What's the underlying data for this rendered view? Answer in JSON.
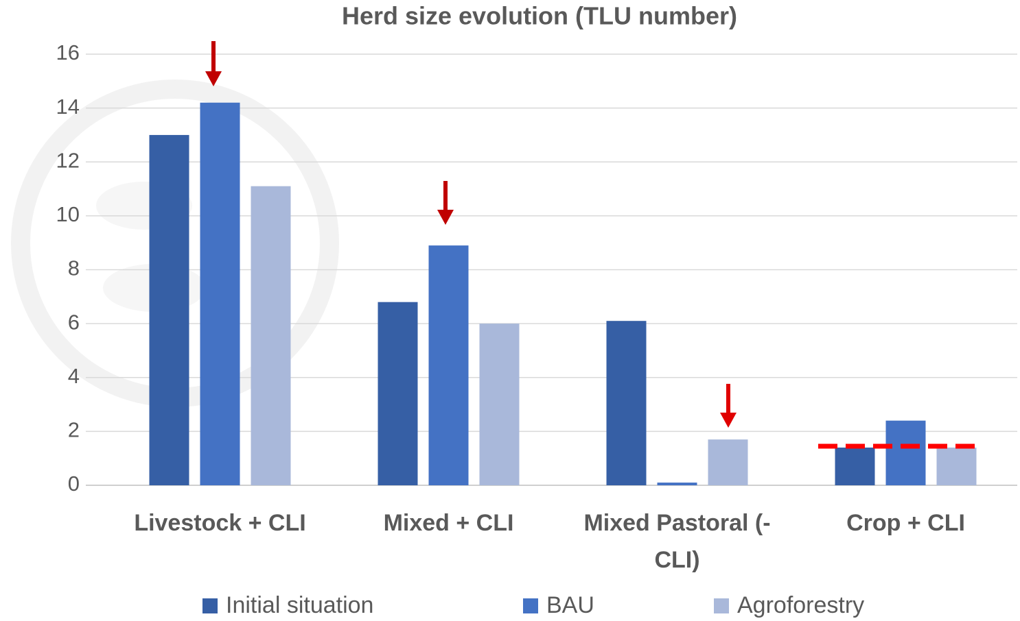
{
  "chart_data": {
    "type": "bar",
    "title": "Herd size evolution (TLU number)",
    "categories": [
      "Livestock + CLI",
      "Mixed + CLI",
      "Mixed Pastoral (- CLI)",
      "Crop + CLI"
    ],
    "series": [
      {
        "name": "Initial situation",
        "color": "#365fa5",
        "values": [
          13.0,
          6.8,
          6.1,
          1.4
        ]
      },
      {
        "name": "BAU",
        "color": "#4472c4",
        "values": [
          14.2,
          8.9,
          0.1,
          2.4
        ]
      },
      {
        "name": "Agroforestry",
        "color": "#a9b8da",
        "values": [
          11.1,
          6.0,
          1.7,
          1.4
        ]
      }
    ],
    "ylim": [
      0,
      16
    ],
    "yticks": [
      0,
      2,
      4,
      6,
      8,
      10,
      12,
      14,
      16
    ],
    "grid": true,
    "legend": "bottom"
  }
}
